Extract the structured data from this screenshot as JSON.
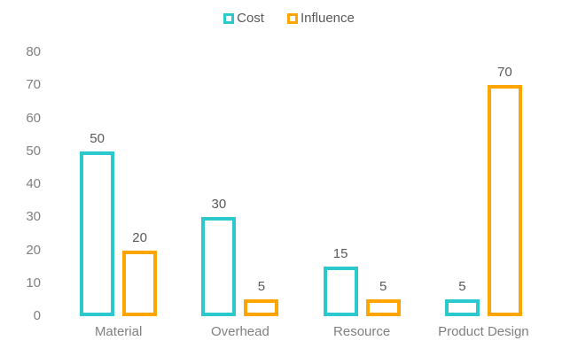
{
  "chart_data": {
    "type": "bar",
    "title": "",
    "xlabel": "",
    "ylabel": "",
    "categories": [
      "Material",
      "Overhead",
      "Resource",
      "Product Design"
    ],
    "series": [
      {
        "name": "Cost",
        "color": "#2bc9ce",
        "values": [
          50,
          30,
          15,
          5
        ]
      },
      {
        "name": "Influence",
        "color": "#ffa500",
        "values": [
          20,
          5,
          5,
          70
        ]
      }
    ],
    "ylim": [
      0,
      80
    ],
    "yticks": [
      0,
      10,
      20,
      30,
      40,
      50,
      60,
      70,
      80
    ],
    "grid": false,
    "axis_lines": false,
    "bar_style": "hollow",
    "data_labels_shown": true,
    "legend_position": "top-center"
  },
  "colors": {
    "cost": "#2bc9ce",
    "influence": "#ffa500",
    "tick_label": "#7f7f7f",
    "category_label": "#7f7f7f",
    "data_label": "#595959",
    "legend_text": "#595959",
    "background": "#ffffff"
  }
}
